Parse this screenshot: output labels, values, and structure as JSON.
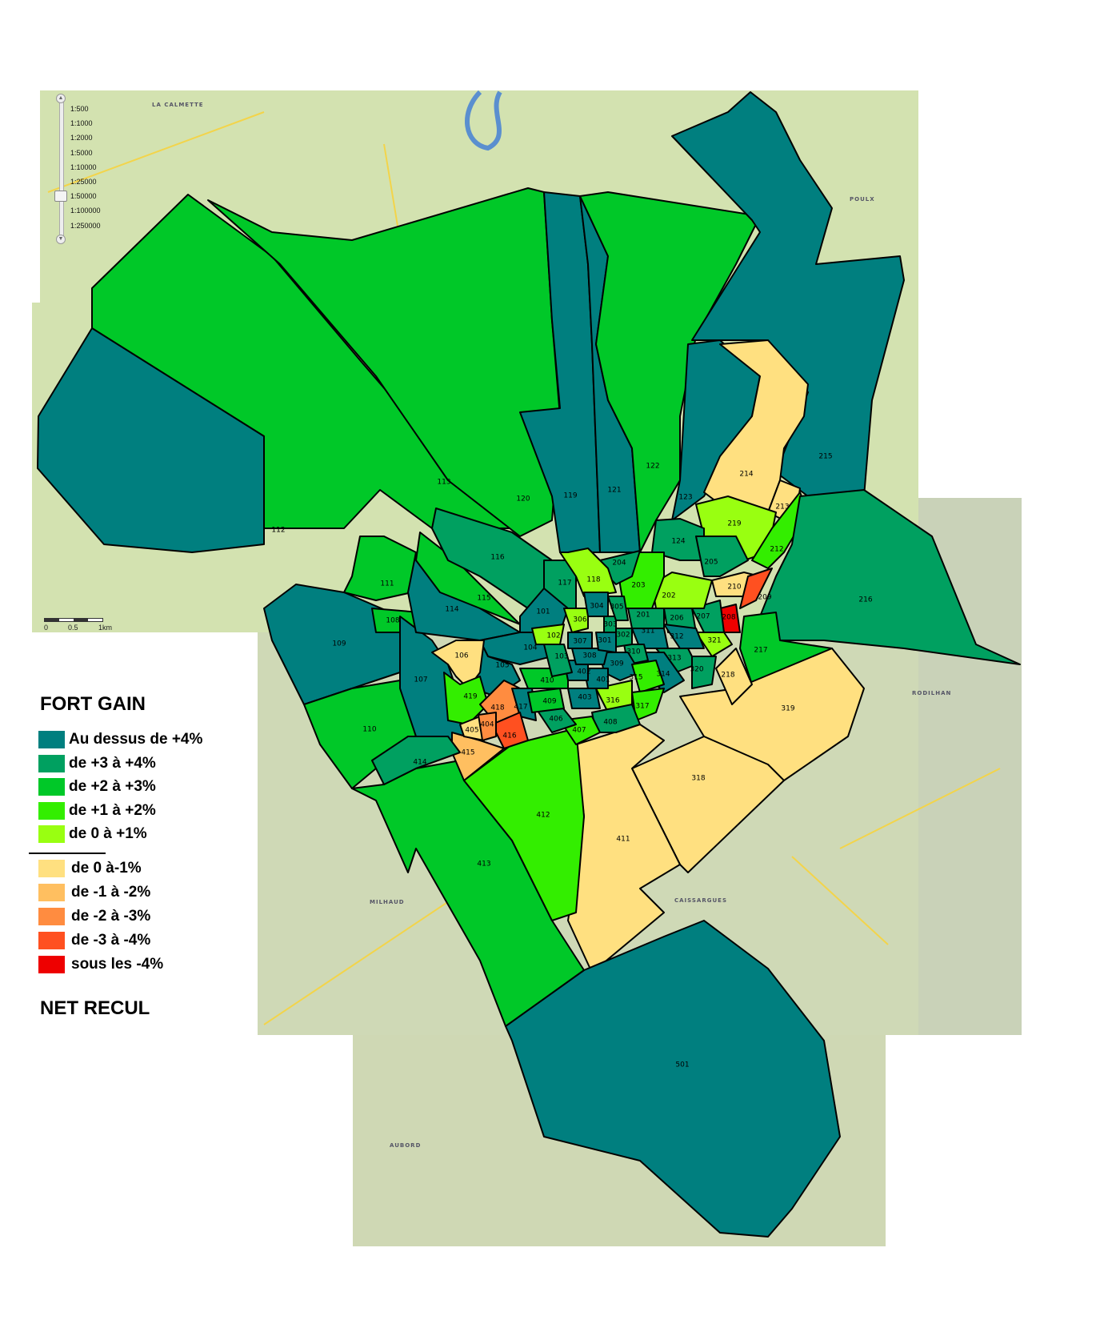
{
  "legend": {
    "title_top": "FORT GAIN",
    "title_bottom": "NET RECUL",
    "classes": [
      {
        "key": "c4",
        "label": "Au dessus de +4%",
        "color": "#007f7f"
      },
      {
        "key": "c3",
        "label": "de +3 à +4%",
        "color": "#00a060"
      },
      {
        "key": "c2",
        "label": "de +2 à +3%",
        "color": "#00c828"
      },
      {
        "key": "c1",
        "label": "de +1 à +2%",
        "color": "#33ee00"
      },
      {
        "key": "c0",
        "label": "de 0 à +1%",
        "color": "#99ff11"
      },
      {
        "key": "n0",
        "label": "de 0 à-1%",
        "color": "#ffe080"
      },
      {
        "key": "n1",
        "label": "de -1 à -2%",
        "color": "#ffbf60"
      },
      {
        "key": "n2",
        "label": "de -2 à -3%",
        "color": "#ff8c40"
      },
      {
        "key": "n3",
        "label": "de -3 à -4%",
        "color": "#ff5020"
      },
      {
        "key": "n4",
        "label": "sous les -4%",
        "color": "#ee0000"
      }
    ]
  },
  "zoom_levels": [
    "1:500",
    "1:1000",
    "1:2000",
    "1:5000",
    "1:10000",
    "1:25000",
    "1:50000",
    "1:100000",
    "1:250000"
  ],
  "zoom_selected": "1:50000",
  "scale_bar": {
    "start": "0",
    "mid": "0.5",
    "end": "1km"
  },
  "places": [
    "LA CALMETTE",
    "POULX",
    "RODILHAN",
    "CAISSARGUES",
    "MILHAUD",
    "AUBORD"
  ],
  "zones": [
    {
      "id": "113",
      "class": "c2"
    },
    {
      "id": "120",
      "class": "c2"
    },
    {
      "id": "112",
      "class": "c4"
    },
    {
      "id": "119",
      "class": "c4"
    },
    {
      "id": "121",
      "class": "c4"
    },
    {
      "id": "122",
      "class": "c2"
    },
    {
      "id": "215",
      "class": "c4"
    },
    {
      "id": "123",
      "class": "c4"
    },
    {
      "id": "214",
      "class": "n0"
    },
    {
      "id": "213",
      "class": "n0"
    },
    {
      "id": "219",
      "class": "c0"
    },
    {
      "id": "212",
      "class": "c1"
    },
    {
      "id": "216",
      "class": "c3"
    },
    {
      "id": "217",
      "class": "c2"
    },
    {
      "id": "319",
      "class": "n0"
    },
    {
      "id": "318",
      "class": "n0"
    },
    {
      "id": "411",
      "class": "n0"
    },
    {
      "id": "501",
      "class": "c4"
    },
    {
      "id": "413",
      "class": "c2"
    },
    {
      "id": "412",
      "class": "c1"
    },
    {
      "id": "109",
      "class": "c4"
    },
    {
      "id": "110",
      "class": "c2"
    },
    {
      "id": "111",
      "class": "c2"
    },
    {
      "id": "108",
      "class": "c2"
    },
    {
      "id": "107",
      "class": "c4"
    },
    {
      "id": "114",
      "class": "c4"
    },
    {
      "id": "115",
      "class": "c2"
    },
    {
      "id": "116",
      "class": "c3"
    },
    {
      "id": "117",
      "class": "c3"
    },
    {
      "id": "101",
      "class": "c4"
    },
    {
      "id": "104",
      "class": "c4"
    },
    {
      "id": "105",
      "class": "c4"
    },
    {
      "id": "106",
      "class": "n0"
    },
    {
      "id": "419",
      "class": "c1"
    },
    {
      "id": "418",
      "class": "n2"
    },
    {
      "id": "417",
      "class": "c4"
    },
    {
      "id": "416",
      "class": "n3"
    },
    {
      "id": "415",
      "class": "n1"
    },
    {
      "id": "405",
      "class": "n0"
    },
    {
      "id": "404",
      "class": "n2"
    },
    {
      "id": "414",
      "class": "c3"
    },
    {
      "id": "218",
      "class": "n0"
    },
    {
      "id": "124",
      "class": "c3"
    },
    {
      "id": "205",
      "class": "c3"
    },
    {
      "id": "210",
      "class": "n0"
    },
    {
      "id": "209",
      "class": "n3"
    },
    {
      "id": "208",
      "class": "n4"
    },
    {
      "id": "207",
      "class": "c3"
    },
    {
      "id": "206",
      "class": "c3"
    },
    {
      "id": "202",
      "class": "c0"
    },
    {
      "id": "203",
      "class": "c1"
    },
    {
      "id": "204",
      "class": "c3"
    },
    {
      "id": "118",
      "class": "c0"
    },
    {
      "id": "201",
      "class": "c3"
    },
    {
      "id": "321",
      "class": "c0"
    },
    {
      "id": "312",
      "class": "c4"
    },
    {
      "id": "313",
      "class": "c3"
    },
    {
      "id": "320",
      "class": "c3"
    },
    {
      "id": "314",
      "class": "c4"
    },
    {
      "id": "311",
      "class": "c4"
    },
    {
      "id": "310",
      "class": "c3"
    },
    {
      "id": "302",
      "class": "c3"
    },
    {
      "id": "309",
      "class": "c4"
    },
    {
      "id": "315",
      "class": "c1"
    },
    {
      "id": "316",
      "class": "c0"
    },
    {
      "id": "317",
      "class": "c1"
    },
    {
      "id": "408",
      "class": "c3"
    },
    {
      "id": "407",
      "class": "c1"
    },
    {
      "id": "406",
      "class": "c3"
    },
    {
      "id": "409",
      "class": "c2"
    },
    {
      "id": "410",
      "class": "c2"
    },
    {
      "id": "403",
      "class": "c4"
    },
    {
      "id": "401",
      "class": "c4"
    },
    {
      "id": "402",
      "class": "c4"
    },
    {
      "id": "103",
      "class": "c3"
    },
    {
      "id": "102",
      "class": "c0"
    },
    {
      "id": "306",
      "class": "c0"
    },
    {
      "id": "304",
      "class": "c4"
    },
    {
      "id": "307",
      "class": "c4"
    },
    {
      "id": "308",
      "class": "c4"
    },
    {
      "id": "301",
      "class": "c4"
    },
    {
      "id": "303",
      "class": "c3"
    },
    {
      "id": "305",
      "class": "c3"
    }
  ]
}
